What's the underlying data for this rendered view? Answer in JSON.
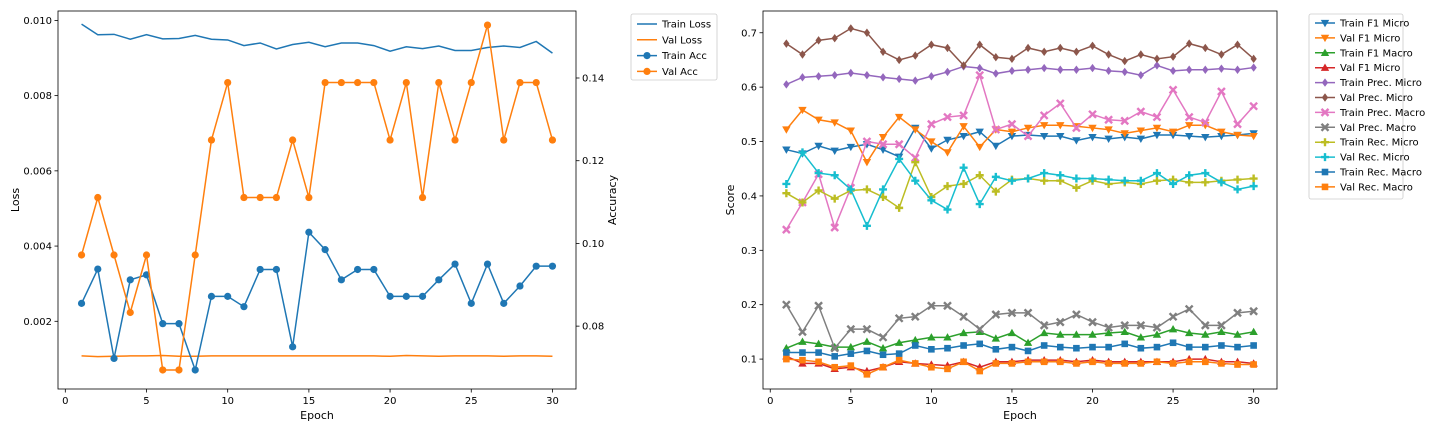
{
  "chart_data": [
    {
      "type": "line",
      "x": [
        1,
        2,
        3,
        4,
        5,
        6,
        7,
        8,
        9,
        10,
        11,
        12,
        13,
        14,
        15,
        16,
        17,
        18,
        19,
        20,
        21,
        22,
        23,
        24,
        25,
        26,
        27,
        28,
        29,
        30
      ],
      "xlabel": "Epoch",
      "ylabel": "Loss",
      "y2label": "Accuracy",
      "xlim": [
        -0.45,
        31.45
      ],
      "ylim": [
        0.0002,
        0.01025
      ],
      "y2lim": [
        0.0648,
        0.1562
      ],
      "xticks": [
        0,
        5,
        10,
        15,
        20,
        25,
        30
      ],
      "yticks": [
        0.002,
        0.004,
        0.006,
        0.008,
        0.01
      ],
      "ytick_labels": [
        "0.002",
        "0.004",
        "0.006",
        "0.008",
        "0.010"
      ],
      "y2ticks": [
        0.08,
        0.1,
        0.12,
        0.14
      ],
      "y2tick_labels": [
        "0.08",
        "0.10",
        "0.12",
        "0.14"
      ],
      "legend_position": "outside-top-right",
      "series": [
        {
          "name": "Train Loss",
          "axis": "left",
          "color": "#1f77b4",
          "marker": "none",
          "values": [
            0.0099,
            0.00962,
            0.00963,
            0.0095,
            0.00962,
            0.00951,
            0.00952,
            0.0096,
            0.0095,
            0.00948,
            0.00933,
            0.0094,
            0.00924,
            0.00936,
            0.00942,
            0.0093,
            0.0094,
            0.0094,
            0.00933,
            0.00918,
            0.0093,
            0.00925,
            0.00932,
            0.0092,
            0.0092,
            0.00928,
            0.00932,
            0.00928,
            0.00944,
            0.00913
          ]
        },
        {
          "name": "Val Loss",
          "axis": "left",
          "color": "#ff7f0e",
          "marker": "none",
          "values": [
            0.00108,
            0.00106,
            0.00107,
            0.00108,
            0.00108,
            0.00109,
            0.00107,
            0.00107,
            0.00108,
            0.00108,
            0.00108,
            0.00108,
            0.00108,
            0.00108,
            0.00108,
            0.00108,
            0.00108,
            0.00108,
            0.00108,
            0.00107,
            0.00109,
            0.00108,
            0.00107,
            0.00108,
            0.00108,
            0.00108,
            0.00107,
            0.00108,
            0.00108,
            0.00107
          ]
        },
        {
          "name": "Train Acc",
          "axis": "right",
          "color": "#1f77b4",
          "marker": "circle",
          "values": [
            0.0855,
            0.0938,
            0.0722,
            0.0912,
            0.0924,
            0.0806,
            0.0806,
            0.0694,
            0.0872,
            0.0872,
            0.0847,
            0.0937,
            0.0937,
            0.075,
            0.1027,
            0.0985,
            0.0912,
            0.0937,
            0.0937,
            0.0872,
            0.0872,
            0.0872,
            0.0912,
            0.095,
            0.0855,
            0.095,
            0.0855,
            0.0897,
            0.0945,
            0.0945
          ]
        },
        {
          "name": "Val Acc",
          "axis": "right",
          "color": "#ff7f0e",
          "marker": "circle",
          "values": [
            0.0972,
            0.1111,
            0.0972,
            0.0833,
            0.0972,
            0.0694,
            0.0694,
            0.0972,
            0.125,
            0.1389,
            0.1111,
            0.1111,
            0.1111,
            0.125,
            0.1111,
            0.1389,
            0.1389,
            0.1389,
            0.1389,
            0.125,
            0.1389,
            0.1111,
            0.1389,
            0.125,
            0.1389,
            0.1528,
            0.125,
            0.1389,
            0.1389,
            0.125
          ]
        }
      ]
    },
    {
      "type": "line",
      "x": [
        1,
        2,
        3,
        4,
        5,
        6,
        7,
        8,
        9,
        10,
        11,
        12,
        13,
        14,
        15,
        16,
        17,
        18,
        19,
        20,
        21,
        22,
        23,
        24,
        25,
        26,
        27,
        28,
        29,
        30
      ],
      "xlabel": "Epoch",
      "ylabel": "Score",
      "xlim": [
        -0.45,
        31.45
      ],
      "ylim": [
        0.045,
        0.74
      ],
      "xticks": [
        0,
        5,
        10,
        15,
        20,
        25,
        30
      ],
      "yticks": [
        0.1,
        0.2,
        0.3,
        0.4,
        0.5,
        0.6,
        0.7
      ],
      "ytick_labels": [
        "0.1",
        "0.2",
        "0.3",
        "0.4",
        "0.5",
        "0.6",
        "0.7"
      ],
      "legend_position": "outside-top-right",
      "series": [
        {
          "name": "Train F1 Micro",
          "color": "#1f77b4",
          "marker": "tri-down",
          "values": [
            0.485,
            0.478,
            0.492,
            0.483,
            0.49,
            0.495,
            0.485,
            0.472,
            0.525,
            0.487,
            0.503,
            0.51,
            0.518,
            0.492,
            0.51,
            0.512,
            0.51,
            0.51,
            0.502,
            0.508,
            0.505,
            0.508,
            0.505,
            0.512,
            0.512,
            0.51,
            0.508,
            0.51,
            0.512,
            0.515
          ]
        },
        {
          "name": "Val F1 Micro",
          "color": "#ff7f0e",
          "marker": "tri-down",
          "values": [
            0.522,
            0.558,
            0.54,
            0.535,
            0.52,
            0.462,
            0.508,
            0.545,
            0.522,
            0.5,
            0.48,
            0.528,
            0.49,
            0.522,
            0.518,
            0.525,
            0.53,
            0.53,
            0.528,
            0.525,
            0.522,
            0.515,
            0.52,
            0.525,
            0.518,
            0.53,
            0.53,
            0.518,
            0.512,
            0.51
          ]
        },
        {
          "name": "Train F1 Macro",
          "color": "#2ca02c",
          "marker": "tri-up",
          "values": [
            0.12,
            0.132,
            0.128,
            0.122,
            0.122,
            0.132,
            0.12,
            0.13,
            0.135,
            0.14,
            0.14,
            0.148,
            0.15,
            0.138,
            0.148,
            0.13,
            0.148,
            0.145,
            0.145,
            0.145,
            0.148,
            0.15,
            0.14,
            0.145,
            0.155,
            0.148,
            0.145,
            0.15,
            0.145,
            0.15
          ]
        },
        {
          "name": "Val F1 Micro",
          "color": "#d62728",
          "marker": "tri-up",
          "values": [
            0.105,
            0.092,
            0.092,
            0.082,
            0.085,
            0.078,
            0.085,
            0.095,
            0.092,
            0.09,
            0.088,
            0.095,
            0.085,
            0.095,
            0.095,
            0.098,
            0.098,
            0.098,
            0.095,
            0.098,
            0.095,
            0.095,
            0.095,
            0.095,
            0.095,
            0.1,
            0.1,
            0.095,
            0.095,
            0.092
          ]
        },
        {
          "name": "Train Prec. Micro",
          "color": "#9467bd",
          "marker": "diamond",
          "values": [
            0.605,
            0.618,
            0.62,
            0.622,
            0.626,
            0.622,
            0.618,
            0.615,
            0.612,
            0.62,
            0.628,
            0.638,
            0.635,
            0.625,
            0.63,
            0.632,
            0.635,
            0.632,
            0.632,
            0.635,
            0.63,
            0.628,
            0.622,
            0.64,
            0.63,
            0.632,
            0.632,
            0.634,
            0.632,
            0.636
          ]
        },
        {
          "name": "Val Prec. Micro",
          "color": "#8c564b",
          "marker": "diamond",
          "values": [
            0.68,
            0.66,
            0.686,
            0.69,
            0.708,
            0.7,
            0.665,
            0.65,
            0.658,
            0.678,
            0.672,
            0.64,
            0.678,
            0.655,
            0.652,
            0.672,
            0.665,
            0.672,
            0.665,
            0.676,
            0.66,
            0.648,
            0.66,
            0.652,
            0.656,
            0.68,
            0.672,
            0.66,
            0.678,
            0.652
          ]
        },
        {
          "name": "Train Prec. Macro",
          "color": "#e377c2",
          "marker": "x-cross",
          "values": [
            0.338,
            0.388,
            0.44,
            0.342,
            0.415,
            0.5,
            0.495,
            0.495,
            0.47,
            0.532,
            0.545,
            0.548,
            0.622,
            0.522,
            0.532,
            0.51,
            0.548,
            0.57,
            0.525,
            0.55,
            0.54,
            0.538,
            0.555,
            0.545,
            0.595,
            0.545,
            0.535,
            0.592,
            0.532,
            0.565
          ]
        },
        {
          "name": "Val Prec. Macro",
          "color": "#7f7f7f",
          "marker": "x-cross",
          "values": [
            0.2,
            0.15,
            0.198,
            0.12,
            0.155,
            0.155,
            0.14,
            0.175,
            0.178,
            0.198,
            0.198,
            0.178,
            0.155,
            0.182,
            0.185,
            0.185,
            0.162,
            0.168,
            0.182,
            0.168,
            0.158,
            0.162,
            0.162,
            0.158,
            0.178,
            0.192,
            0.162,
            0.162,
            0.185,
            0.188
          ]
        },
        {
          "name": "Train Rec. Micro",
          "color": "#bcbd22",
          "marker": "plus",
          "values": [
            0.405,
            0.388,
            0.41,
            0.395,
            0.41,
            0.412,
            0.398,
            0.378,
            0.462,
            0.398,
            0.418,
            0.422,
            0.438,
            0.408,
            0.43,
            0.432,
            0.428,
            0.428,
            0.415,
            0.428,
            0.422,
            0.425,
            0.422,
            0.428,
            0.43,
            0.425,
            0.425,
            0.428,
            0.43,
            0.432
          ]
        },
        {
          "name": "Val Rec. Micro",
          "color": "#17becf",
          "marker": "plus",
          "values": [
            0.422,
            0.48,
            0.442,
            0.438,
            0.412,
            0.345,
            0.412,
            0.468,
            0.428,
            0.392,
            0.375,
            0.452,
            0.385,
            0.435,
            0.428,
            0.432,
            0.442,
            0.438,
            0.432,
            0.432,
            0.43,
            0.428,
            0.428,
            0.442,
            0.422,
            0.438,
            0.442,
            0.425,
            0.412,
            0.418
          ]
        },
        {
          "name": "Train Rec. Macro",
          "color": "#1f77b4",
          "marker": "square",
          "values": [
            0.112,
            0.112,
            0.112,
            0.105,
            0.11,
            0.115,
            0.108,
            0.11,
            0.125,
            0.118,
            0.12,
            0.125,
            0.128,
            0.118,
            0.122,
            0.115,
            0.125,
            0.122,
            0.12,
            0.122,
            0.122,
            0.128,
            0.12,
            0.122,
            0.13,
            0.122,
            0.122,
            0.125,
            0.122,
            0.125
          ]
        },
        {
          "name": "Val Rec. Macro",
          "color": "#ff7f0e",
          "marker": "square",
          "values": [
            0.1,
            0.098,
            0.095,
            0.085,
            0.088,
            0.072,
            0.085,
            0.098,
            0.092,
            0.085,
            0.082,
            0.095,
            0.078,
            0.092,
            0.092,
            0.095,
            0.095,
            0.095,
            0.092,
            0.095,
            0.092,
            0.092,
            0.092,
            0.095,
            0.092,
            0.095,
            0.095,
            0.092,
            0.09,
            0.09
          ]
        }
      ]
    }
  ]
}
